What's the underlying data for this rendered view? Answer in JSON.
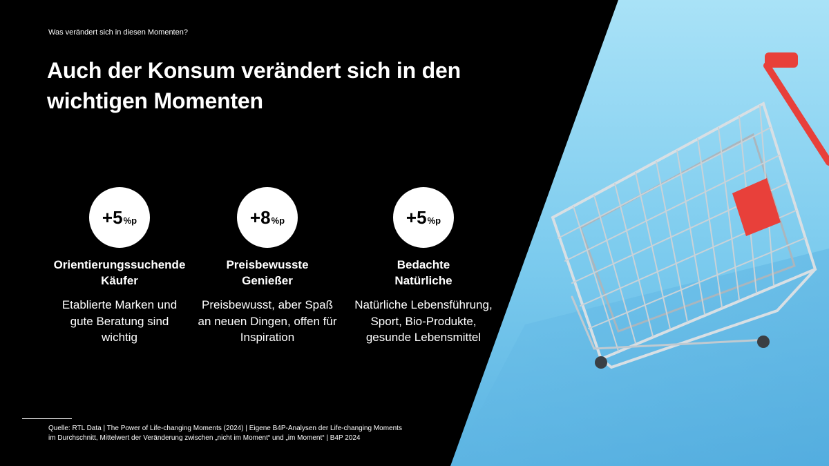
{
  "header": {
    "eyebrow": "Was verändert sich in diesen Momenten?",
    "title_line1": "Auch der Konsum verändert sich in den",
    "title_line2": "wichtigen Momenten"
  },
  "segments": [
    {
      "value": "+5",
      "unit": "%p",
      "name_line1": "Orientierungssuchende",
      "name_line2": "Käufer",
      "desc_line1": "Etablierte Marken und",
      "desc_line2": "gute Beratung sind",
      "desc_line3": "wichtig"
    },
    {
      "value": "+8",
      "unit": "%p",
      "name_line1": "Preisbewusste",
      "name_line2": "Genießer",
      "desc_line1": "Preisbewusst, aber Spaß",
      "desc_line2": "an neuen Dingen, offen für",
      "desc_line3": "Inspiration"
    },
    {
      "value": "+5",
      "unit": "%p",
      "name_line1": "Bedachte",
      "name_line2": "Natürliche",
      "desc_line1": "Natürliche Lebensführung,",
      "desc_line2": "Sport, Bio-Produkte,",
      "desc_line3": "gesunde Lebensmittel"
    }
  ],
  "footer": {
    "source_line1": "Quelle: RTL Data | The Power of Life-changing Moments (2024) | Eigene B4P-Analysen der Life-changing Moments",
    "source_line2": "im Durchschnitt, Mittelwert der Veränderung zwischen „nicht im Moment“ und „im Moment“ | B4P 2024"
  },
  "colors": {
    "background": "#000000",
    "photo_sky": "#8fd4f0",
    "photo_floor": "#5fb6e4",
    "cart_handle": "#e8403a",
    "circle": "#ffffff"
  }
}
